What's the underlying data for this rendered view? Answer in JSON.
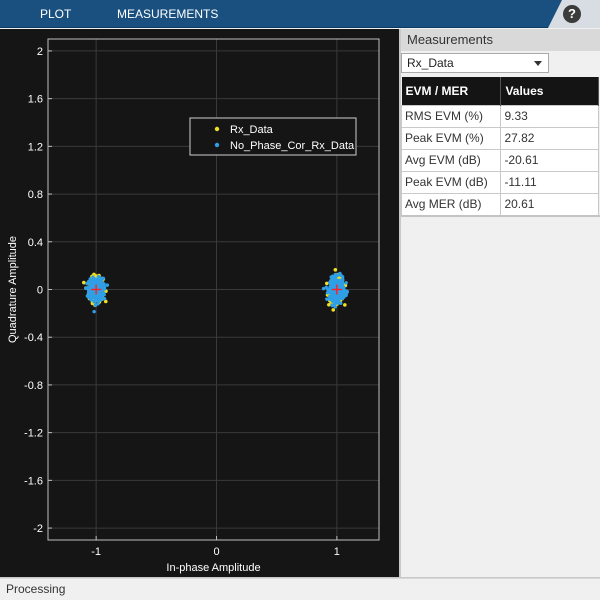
{
  "toolbar": {
    "tabs": [
      {
        "label": "PLOT"
      },
      {
        "label": "MEASUREMENTS"
      }
    ],
    "help_label": "?",
    "help_icon": "help-icon"
  },
  "chart_data": {
    "type": "scatter",
    "xlabel": "In-phase Amplitude",
    "ylabel": "Quadrature Amplitude",
    "xlim": [
      -1.4,
      1.35
    ],
    "ylim": [
      -2.1,
      2.1
    ],
    "x_ticks": [
      -1,
      0,
      1
    ],
    "y_ticks": [
      2,
      1.6,
      1.2,
      0.8,
      0.4,
      0,
      -0.4,
      -0.8,
      -1.2,
      -1.6,
      -2
    ],
    "grid": true,
    "legend_placement": "top-right",
    "background": "#151515",
    "series": [
      {
        "name": "Rx_Data",
        "color": "#f0e020",
        "clusters": [
          {
            "x": -1,
            "y": 0,
            "spread_x": 0.07,
            "spread_y": 0.12
          },
          {
            "x": 1,
            "y": 0,
            "spread_x": 0.07,
            "spread_y": 0.12
          }
        ]
      },
      {
        "name": "No_Phase_Cor_Rx_Data",
        "color": "#2f9fe6",
        "clusters": [
          {
            "x": -1,
            "y": 0,
            "spread_x": 0.07,
            "spread_y": 0.11
          },
          {
            "x": 1,
            "y": 0,
            "spread_x": 0.07,
            "spread_y": 0.11
          }
        ]
      }
    ],
    "reference_points": {
      "color": "#ff2020",
      "points": [
        {
          "x": -1,
          "y": 0
        },
        {
          "x": 1,
          "y": 0
        }
      ]
    }
  },
  "measurements": {
    "title": "Measurements",
    "selected_signal": "Rx_Data",
    "columns": [
      "EVM / MER",
      "Values"
    ],
    "rows": [
      {
        "label": "RMS EVM (%)",
        "value": "9.33"
      },
      {
        "label": "Peak EVM (%)",
        "value": "27.82"
      },
      {
        "label": "Avg EVM (dB)",
        "value": "-20.61"
      },
      {
        "label": "Peak EVM (dB)",
        "value": "-11.11"
      },
      {
        "label": "Avg MER (dB)",
        "value": "20.61"
      }
    ]
  },
  "status": {
    "text": "Processing"
  }
}
